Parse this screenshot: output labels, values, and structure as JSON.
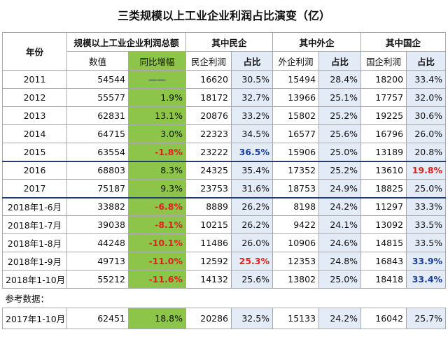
{
  "title": "三类规模以上工业企业利润占比演变（亿）",
  "headers": {
    "year": "年份",
    "group_total": "规模以上工业企业利润总额",
    "group_private": "其中民企",
    "group_foreign": "其中外企",
    "group_state": "其中国企",
    "value": "数值",
    "yoy": "同比增幅",
    "private_profit": "民企利润",
    "share": "占比",
    "foreign_profit": "外企利润",
    "state_profit": "国企利润"
  },
  "rows": [
    {
      "year": "2011",
      "total": "54544",
      "yoy": "——",
      "priv": "16620",
      "priv_share": "30.5%",
      "for": "15494",
      "for_share": "28.4%",
      "soe": "18200",
      "soe_share": "33.4%"
    },
    {
      "year": "2012",
      "total": "55577",
      "yoy": "1.9%",
      "priv": "18172",
      "priv_share": "32.7%",
      "for": "13966",
      "for_share": "25.1%",
      "soe": "17757",
      "soe_share": "32.0%"
    },
    {
      "year": "2013",
      "total": "62831",
      "yoy": "13.1%",
      "priv": "20876",
      "priv_share": "33.2%",
      "for": "15802",
      "for_share": "25.2%",
      "soe": "19225",
      "soe_share": "30.6%"
    },
    {
      "year": "2014",
      "total": "64715",
      "yoy": "3.0%",
      "priv": "22323",
      "priv_share": "34.5%",
      "for": "16577",
      "for_share": "25.6%",
      "soe": "16796",
      "soe_share": "26.0%"
    },
    {
      "year": "2015",
      "total": "63554",
      "yoy": "-1.8%",
      "priv": "23222",
      "priv_share": "36.5%",
      "for": "15906",
      "for_share": "25.0%",
      "soe": "13189",
      "soe_share": "20.8%"
    },
    {
      "year": "2016",
      "total": "68803",
      "yoy": "8.3%",
      "priv": "24325",
      "priv_share": "35.4%",
      "for": "17352",
      "for_share": "25.2%",
      "soe": "13610",
      "soe_share": "19.8%"
    },
    {
      "year": "2017",
      "total": "75187",
      "yoy": "9.3%",
      "priv": "23753",
      "priv_share": "31.6%",
      "for": "18753",
      "for_share": "24.9%",
      "soe": "18825",
      "soe_share": "25.0%"
    },
    {
      "year": "2018年1-6月",
      "total": "33882",
      "yoy": "-6.8%",
      "priv": "8889",
      "priv_share": "26.2%",
      "for": "8198",
      "for_share": "24.2%",
      "soe": "11297",
      "soe_share": "33.3%"
    },
    {
      "year": "2018年1-7月",
      "total": "39038",
      "yoy": "-8.1%",
      "priv": "10215",
      "priv_share": "26.2%",
      "for": "9422",
      "for_share": "24.1%",
      "soe": "13092",
      "soe_share": "33.5%"
    },
    {
      "year": "2018年1-8月",
      "total": "44248",
      "yoy": "-10.1%",
      "priv": "11486",
      "priv_share": "26.0%",
      "for": "10906",
      "for_share": "24.6%",
      "soe": "14815",
      "soe_share": "33.5%"
    },
    {
      "year": "2018年1-9月",
      "total": "49713",
      "yoy": "-11.0%",
      "priv": "12592",
      "priv_share": "25.3%",
      "for": "12353",
      "for_share": "24.8%",
      "soe": "16843",
      "soe_share": "33.9%"
    },
    {
      "year": "2018年1-10月",
      "total": "55212",
      "yoy": "-11.6%",
      "priv": "14132",
      "priv_share": "25.6%",
      "for": "13802",
      "for_share": "25.0%",
      "soe": "18418",
      "soe_share": "33.4%"
    }
  ],
  "reference_label": "参考数据：",
  "reference_row": {
    "year": "2017年1-10月",
    "total": "62451",
    "yoy": "18.8%",
    "priv": "20286",
    "priv_share": "32.5%",
    "for": "15133",
    "for_share": "24.2%",
    "soe": "16042",
    "soe_share": "25.7%"
  },
  "colors": {
    "yoy_fill": "#8dc54b",
    "share_fill": "#e3ebf6",
    "highlight_red": "#e02020",
    "highlight_blue": "#1c3e9a"
  }
}
